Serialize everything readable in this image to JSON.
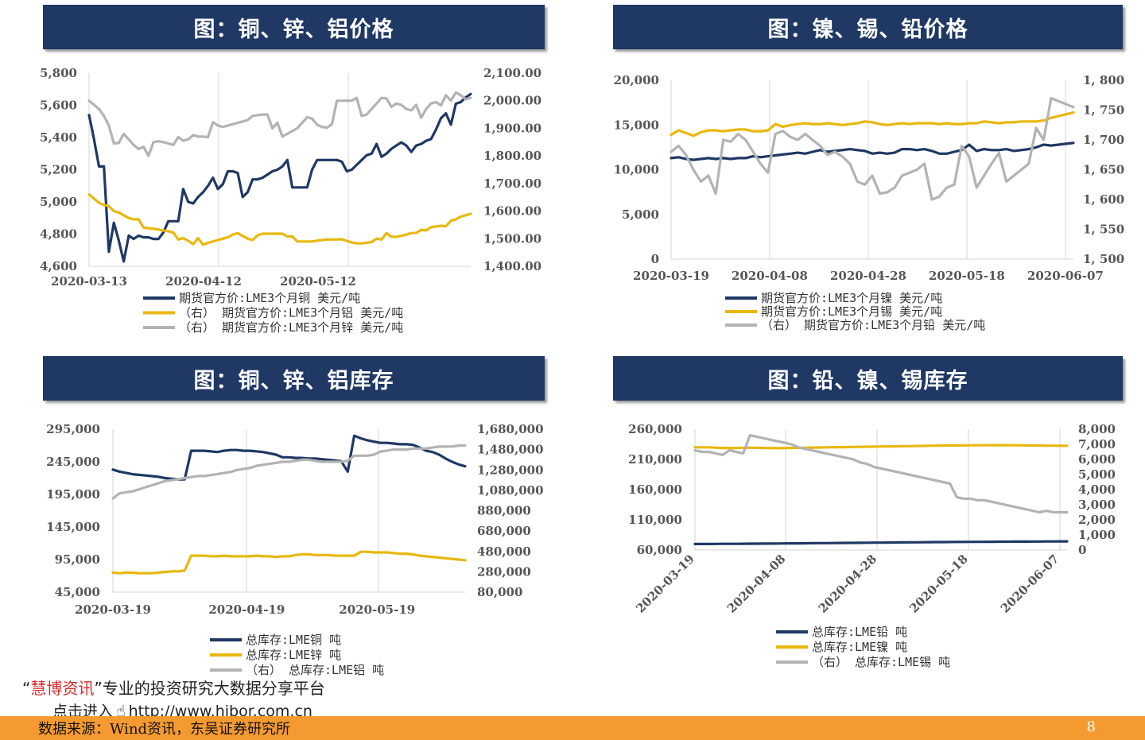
{
  "page": {
    "number": "8",
    "source": "数据来源：Wind资讯，东吴证券研究所"
  },
  "watermark": {
    "line1_quote_open": "“",
    "line1_brand": "慧博资讯",
    "line1_rest": "”专业的投资研究大数据分享平台",
    "line2_prefix": "点击进入",
    "line2_url": "http://www.hibor.com.cn",
    "pointer_icon": "hand-pointer-icon"
  },
  "colors": {
    "navy": "#1f3864",
    "gold": "#e8b80f",
    "gray": "#b3b3b3",
    "banner": "#1f3864",
    "footer": "#f59a30"
  },
  "chart_data": [
    {
      "id": "c1",
      "type": "line",
      "title": "图：铜、锌、铝价格",
      "left_axis": {
        "min": 4600,
        "max": 5800,
        "ticks": [
          "5,800",
          "5,600",
          "5,400",
          "5,200",
          "5,000",
          "4,800",
          "4,600"
        ]
      },
      "right_axis": {
        "min": 1400,
        "max": 2100,
        "ticks": [
          "2,100.00",
          "2,000.00",
          "1,900.00",
          "1,800.00",
          "1,700.00",
          "1,600.00",
          "1,500.00",
          "1,400.00"
        ]
      },
      "x_ticks": [
        {
          "label": "2020-03-13",
          "t": 0
        },
        {
          "label": "2020-04-12",
          "t": 0.3
        },
        {
          "label": "2020-05-12",
          "t": 0.6
        }
      ],
      "series": [
        {
          "name": "期货官方价:LME3个月铜 美元/吨",
          "axis": "left",
          "color": "navy",
          "values": [
            5540,
            5390,
            5220,
            5220,
            4690,
            4870,
            4760,
            4630,
            4790,
            4770,
            4790,
            4780,
            4780,
            4770,
            4770,
            4810,
            4880,
            4880,
            4880,
            5080,
            5000,
            4990,
            5030,
            5060,
            5100,
            5150,
            5080,
            5110,
            5190,
            5190,
            5180,
            5030,
            5060,
            5140,
            5140,
            5150,
            5170,
            5190,
            5200,
            5220,
            5260,
            5090,
            5090,
            5090,
            5090,
            5200,
            5260,
            5260,
            5260,
            5260,
            5260,
            5250,
            5190,
            5200,
            5230,
            5260,
            5290,
            5300,
            5360,
            5280,
            5300,
            5330,
            5350,
            5370,
            5350,
            5310,
            5350,
            5360,
            5380,
            5390,
            5450,
            5520,
            5550,
            5480,
            5610,
            5620,
            5650,
            5670
          ]
        },
        {
          "name": "（右） 期货官方价:LME3个月铝 美元/吨",
          "axis": "right",
          "color": "gold",
          "values": [
            1660,
            1645,
            1630,
            1622,
            1618,
            1600,
            1595,
            1585,
            1575,
            1570,
            1570,
            1540,
            1538,
            1536,
            1533,
            1530,
            1527,
            1522,
            1497,
            1502,
            1492,
            1480,
            1502,
            1478,
            1485,
            1490,
            1495,
            1500,
            1505,
            1515,
            1520,
            1510,
            1500,
            1495,
            1512,
            1518,
            1518,
            1518,
            1518,
            1518,
            1508,
            1508,
            1490,
            1490,
            1490,
            1490,
            1493,
            1495,
            1497,
            1497,
            1497,
            1498,
            1492,
            1486,
            1483,
            1483,
            1485,
            1488,
            1500,
            1497,
            1520,
            1507,
            1507,
            1510,
            1515,
            1520,
            1521,
            1532,
            1530,
            1542,
            1544,
            1547,
            1545,
            1565,
            1570,
            1580,
            1585,
            1590
          ]
        },
        {
          "name": "（右） 期货官方价:LME3个月锌 美元/吨",
          "axis": "right",
          "color": "gray",
          "values": [
            2000,
            1985,
            1970,
            1945,
            1910,
            1845,
            1847,
            1880,
            1860,
            1840,
            1825,
            1833,
            1800,
            1850,
            1853,
            1850,
            1845,
            1840,
            1868,
            1855,
            1860,
            1875,
            1870,
            1870,
            1868,
            1922,
            1910,
            1905,
            1910,
            1915,
            1920,
            1925,
            1930,
            1945,
            1948,
            1950,
            1950,
            1900,
            1920,
            1870,
            1880,
            1890,
            1900,
            1920,
            1940,
            1935,
            1913,
            1905,
            1902,
            1915,
            2000,
            2000,
            2000,
            2000,
            2010,
            1945,
            1950,
            1970,
            1990,
            2010,
            2008,
            1978,
            1990,
            1985,
            1970,
            1965,
            1985,
            1938,
            1970,
            1990,
            1995,
            1983,
            2020,
            2000,
            2030,
            2020,
            2005,
            2010
          ]
        }
      ]
    },
    {
      "id": "c2",
      "type": "line",
      "title": "图：镍、锡、铅价格",
      "left_axis": {
        "min": 0,
        "max": 20000,
        "ticks": [
          "20,000",
          "15,000",
          "10,000",
          "5,000",
          "0"
        ]
      },
      "right_axis": {
        "min": 1500,
        "max": 1800,
        "ticks": [
          "1, 800",
          "1, 750",
          "1, 700",
          "1, 650",
          "1, 600",
          "1, 550",
          "1, 500"
        ]
      },
      "x_ticks": [
        {
          "label": "2020-03-19",
          "t": 0
        },
        {
          "label": "2020-04-08",
          "t": 0.245
        },
        {
          "label": "2020-04-28",
          "t": 0.49
        },
        {
          "label": "2020-05-18",
          "t": 0.735
        },
        {
          "label": "2020-06-07",
          "t": 0.98
        }
      ],
      "series": [
        {
          "name": "期货官方价:LME3个月镍 美元/吨",
          "axis": "left",
          "color": "navy",
          "values": [
            11300,
            11400,
            11200,
            11100,
            11200,
            11300,
            11200,
            11300,
            11200,
            11300,
            11300,
            11500,
            11400,
            11500,
            11600,
            11700,
            11800,
            11900,
            11800,
            12000,
            12200,
            12000,
            12100,
            12200,
            12300,
            12200,
            12100,
            11800,
            11900,
            11800,
            11900,
            12300,
            12300,
            12200,
            12300,
            12100,
            11800,
            11800,
            12000,
            12200,
            12800,
            12100,
            12300,
            12200,
            12200,
            12300,
            12100,
            12200,
            12300,
            12500,
            12800,
            12700,
            12800,
            12900,
            13000
          ]
        },
        {
          "name": "期货官方价:LME3个月锡 美元/吨",
          "axis": "left",
          "color": "gold",
          "values": [
            13900,
            14400,
            14100,
            13800,
            14200,
            14400,
            14400,
            14300,
            14400,
            14500,
            14500,
            14300,
            14300,
            14400,
            15100,
            14800,
            15000,
            15100,
            15200,
            15100,
            15100,
            15200,
            15100,
            15000,
            15100,
            15200,
            15400,
            15300,
            15100,
            15000,
            15100,
            15200,
            15100,
            15200,
            15200,
            15200,
            15100,
            15200,
            15100,
            15100,
            15200,
            15200,
            15400,
            15300,
            15200,
            15300,
            15300,
            15400,
            15400,
            15400,
            15500,
            15800,
            16000,
            16200,
            16400
          ]
        },
        {
          "name": "（右） 期货官方价:LME3个月铅 美元/吨",
          "axis": "right",
          "color": "gray",
          "values": [
            1680,
            1690,
            1675,
            1650,
            1630,
            1640,
            1610,
            1700,
            1697,
            1710,
            1700,
            1680,
            1660,
            1645,
            1710,
            1715,
            1705,
            1700,
            1710,
            1700,
            1690,
            1675,
            1680,
            1672,
            1660,
            1630,
            1625,
            1640,
            1610,
            1612,
            1620,
            1640,
            1645,
            1650,
            1660,
            1600,
            1605,
            1620,
            1625,
            1690,
            1672,
            1620,
            1640,
            1660,
            1678,
            1630,
            1640,
            1650,
            1660,
            1720,
            1700,
            1770,
            1765,
            1760,
            1755
          ]
        }
      ]
    },
    {
      "id": "c3",
      "type": "line",
      "title": "图：铜、锌、铝库存",
      "left_axis": {
        "min": 45000,
        "max": 295000,
        "ticks": [
          "295,000",
          "245,000",
          "195,000",
          "145,000",
          "95,000",
          "45,000"
        ]
      },
      "right_axis": {
        "min": 80000,
        "max": 1680000,
        "ticks": [
          "1,680,000",
          "1,480,000",
          "1,280,000",
          "1,080,000",
          "880,000",
          "680,000",
          "480,000",
          "280,000",
          "80,000"
        ]
      },
      "x_ticks": [
        {
          "label": "2020-03-19",
          "t": 0
        },
        {
          "label": "2020-04-19",
          "t": 0.38
        },
        {
          "label": "2020-05-19",
          "t": 0.75
        }
      ],
      "series": [
        {
          "name": "总库存:LME铜 吨",
          "axis": "left",
          "color": "navy",
          "values": [
            233000,
            230000,
            228000,
            226000,
            225000,
            224000,
            223000,
            222000,
            220000,
            219000,
            218000,
            218000,
            262000,
            262000,
            262000,
            261000,
            260000,
            262000,
            263000,
            263000,
            262000,
            262000,
            261000,
            260000,
            258000,
            256000,
            252000,
            252000,
            251000,
            251000,
            250000,
            250000,
            249000,
            248000,
            247000,
            246000,
            230000,
            285000,
            281000,
            278000,
            276000,
            274000,
            274000,
            273000,
            272000,
            272000,
            271000,
            267000,
            262000,
            260000,
            256000,
            250000,
            245000,
            241000,
            238000
          ]
        },
        {
          "name": "总库存:LME锌 吨",
          "axis": "left",
          "color": "gold",
          "values": [
            75000,
            74000,
            75000,
            75000,
            74000,
            74000,
            74000,
            75000,
            76000,
            77000,
            77000,
            78000,
            101000,
            101000,
            101000,
            100000,
            100000,
            101000,
            100000,
            100000,
            100000,
            100000,
            101000,
            100000,
            100000,
            99000,
            100000,
            100000,
            102000,
            103000,
            103000,
            102000,
            102000,
            102000,
            101000,
            101000,
            101000,
            101000,
            107000,
            107000,
            106000,
            106000,
            106000,
            105000,
            104000,
            104000,
            103000,
            101000,
            100000,
            99000,
            98000,
            97000,
            96000,
            95000,
            94000
          ]
        },
        {
          "name": "（右） 总库存:LME铝 吨",
          "axis": "right",
          "color": "gray",
          "values": [
            1000000,
            1050000,
            1060000,
            1070000,
            1090000,
            1110000,
            1130000,
            1150000,
            1170000,
            1180000,
            1190000,
            1200000,
            1210000,
            1220000,
            1220000,
            1230000,
            1240000,
            1250000,
            1260000,
            1280000,
            1290000,
            1300000,
            1320000,
            1330000,
            1340000,
            1350000,
            1360000,
            1360000,
            1370000,
            1380000,
            1380000,
            1370000,
            1360000,
            1360000,
            1360000,
            1360000,
            1370000,
            1420000,
            1420000,
            1420000,
            1430000,
            1460000,
            1470000,
            1480000,
            1480000,
            1480000,
            1490000,
            1490000,
            1490000,
            1500000,
            1510000,
            1510000,
            1510000,
            1520000,
            1520000
          ]
        }
      ]
    },
    {
      "id": "c4",
      "type": "line",
      "title": "图：铅、镍、锡库存",
      "left_axis": {
        "min": 60000,
        "max": 260000,
        "ticks": [
          "260,000",
          "210,000",
          "160,000",
          "110,000",
          "60,000"
        ]
      },
      "right_axis": {
        "min": 0,
        "max": 8000,
        "ticks": [
          "8,000",
          "7,000",
          "6,000",
          "5,000",
          "4,000",
          "3,000",
          "2,000",
          "1,000",
          "0"
        ]
      },
      "x_ticks": [
        {
          "label": "2020-03-19",
          "t": 0
        },
        {
          "label": "2020-04-08",
          "t": 0.245
        },
        {
          "label": "2020-04-28",
          "t": 0.49
        },
        {
          "label": "2020-05-18",
          "t": 0.735
        },
        {
          "label": "2020-06-07",
          "t": 0.98
        }
      ],
      "series": [
        {
          "name": "总库存:LME铅 吨",
          "axis": "left",
          "color": "navy",
          "values": [
            70000,
            70000,
            70000,
            70100,
            70200,
            70300,
            70300,
            70400,
            70500,
            70500,
            70600,
            70700,
            70800,
            70900,
            71000,
            71100,
            71200,
            71300,
            71400,
            71500,
            71600,
            71700,
            71800,
            71900,
            72000,
            72100,
            72200,
            72300,
            72400,
            72500,
            72600,
            72700,
            72800,
            72900,
            73000,
            73100,
            73200,
            73300,
            73400,
            73400,
            73500,
            73600,
            73600,
            73700,
            73800,
            73800,
            73900,
            74000,
            74000,
            74100,
            74100,
            74200,
            74200,
            74300,
            74300
          ]
        },
        {
          "name": "总库存:LME镍 吨",
          "axis": "left",
          "color": "gold",
          "values": [
            230000,
            230000,
            230000,
            229500,
            229000,
            229000,
            229000,
            229200,
            229400,
            229400,
            229000,
            228800,
            228600,
            228800,
            229000,
            229200,
            229400,
            229600,
            229800,
            230000,
            230200,
            230200,
            230400,
            230600,
            230800,
            231000,
            231200,
            231400,
            231600,
            231600,
            232000,
            232000,
            232200,
            232400,
            232600,
            232800,
            233000,
            233000,
            233000,
            233200,
            233400,
            233400,
            233400,
            233600,
            233600,
            233600,
            233400,
            233400,
            233200,
            233000,
            233000,
            232800,
            232800,
            232600,
            232500
          ]
        },
        {
          "name": "（右） 总库存:LME锡 吨",
          "axis": "right",
          "color": "gray",
          "values": [
            6600,
            6500,
            6500,
            6400,
            6300,
            6600,
            6500,
            6400,
            7600,
            7500,
            7400,
            7300,
            7200,
            7100,
            7000,
            6800,
            6700,
            6600,
            6500,
            6400,
            6300,
            6200,
            6100,
            6000,
            5800,
            5700,
            5500,
            5400,
            5300,
            5200,
            5100,
            5000,
            4900,
            4800,
            4700,
            4600,
            4500,
            4400,
            3500,
            3400,
            3400,
            3300,
            3300,
            3200,
            3100,
            3000,
            2900,
            2800,
            2700,
            2600,
            2500,
            2600,
            2500,
            2500,
            2500
          ]
        }
      ]
    }
  ]
}
